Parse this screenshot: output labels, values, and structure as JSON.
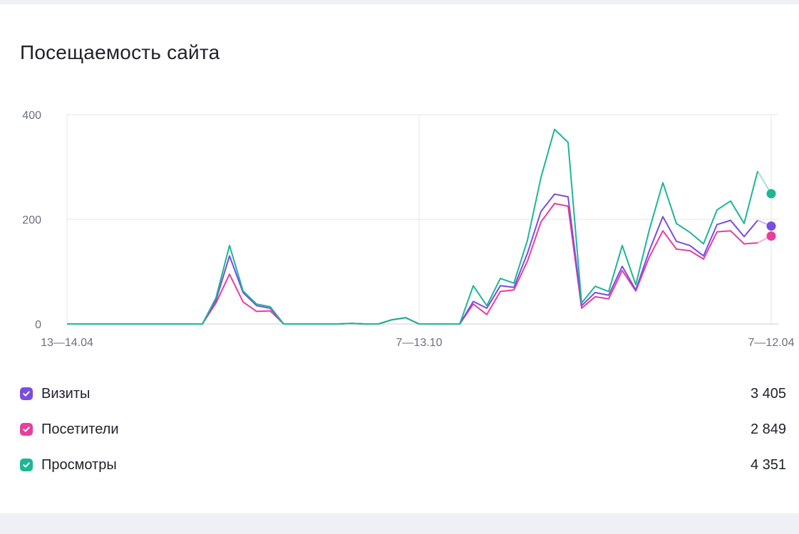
{
  "card": {
    "title": "Посещаемость сайта"
  },
  "chart_data": {
    "type": "line",
    "title": "Посещаемость сайта",
    "xlabel": "",
    "ylabel": "",
    "ylim": [
      0,
      400
    ],
    "yticks": [
      0,
      200,
      400
    ],
    "xtick_labels": [
      "13—14.04",
      "7—13.10",
      "7—12.04"
    ],
    "grid": true,
    "series": [
      {
        "name": "Визиты",
        "color": "#7b4ce0",
        "total": "3 405",
        "values": [
          0,
          0,
          0,
          0,
          0,
          0,
          0,
          0,
          0,
          0,
          0,
          45,
          130,
          60,
          35,
          30,
          0,
          0,
          0,
          0,
          0,
          1,
          0,
          0,
          8,
          12,
          0,
          0,
          0,
          0,
          43,
          30,
          73,
          70,
          135,
          215,
          248,
          243,
          35,
          60,
          55,
          110,
          65,
          140,
          205,
          158,
          150,
          130,
          190,
          198,
          167,
          198,
          187
        ]
      },
      {
        "name": "Посетители",
        "color": "#e83e9c",
        "total": "2 849",
        "values": [
          0,
          0,
          0,
          0,
          0,
          0,
          0,
          0,
          0,
          0,
          0,
          40,
          95,
          42,
          24,
          25,
          0,
          0,
          0,
          0,
          0,
          1,
          0,
          0,
          8,
          12,
          0,
          0,
          0,
          0,
          38,
          18,
          62,
          65,
          120,
          195,
          230,
          225,
          30,
          52,
          48,
          102,
          63,
          128,
          178,
          143,
          140,
          124,
          176,
          178,
          153,
          155,
          168
        ]
      },
      {
        "name": "Просмотры",
        "color": "#1fb595",
        "total": "4 351",
        "values": [
          0,
          0,
          0,
          0,
          0,
          0,
          0,
          0,
          0,
          0,
          0,
          50,
          150,
          63,
          38,
          33,
          0,
          0,
          0,
          0,
          0,
          1,
          0,
          0,
          8,
          12,
          0,
          0,
          0,
          0,
          73,
          35,
          87,
          78,
          160,
          280,
          372,
          347,
          40,
          72,
          62,
          150,
          75,
          180,
          270,
          192,
          175,
          153,
          218,
          235,
          192,
          292,
          249
        ]
      }
    ],
    "legend_position": "bottom"
  }
}
